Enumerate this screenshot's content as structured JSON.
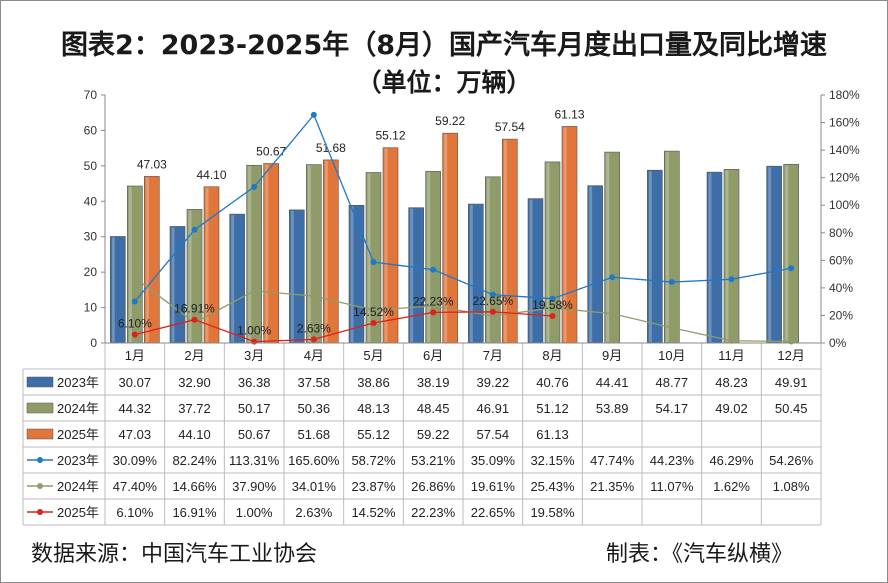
{
  "title": "图表2：2023-2025年（8月）国产汽车月度出口量及同比增速",
  "subtitle": "（单位：万辆）",
  "source": "数据来源：中国汽车工业协会",
  "maker": "制表：《汽车纵横》",
  "chart_data": {
    "type": "bar+line",
    "categories": [
      "1月",
      "2月",
      "3月",
      "4月",
      "5月",
      "6月",
      "7月",
      "8月",
      "9月",
      "10月",
      "11月",
      "12月"
    ],
    "y_left": {
      "min": 0,
      "max": 70,
      "step": 10,
      "ticks": [
        "0",
        "10",
        "20",
        "30",
        "40",
        "50",
        "60",
        "70"
      ]
    },
    "y_right": {
      "min": 0,
      "max": 180,
      "step": 20,
      "ticks": [
        "0%",
        "20%",
        "40%",
        "60%",
        "80%",
        "100%",
        "120%",
        "140%",
        "160%",
        "180%"
      ]
    },
    "grid": false,
    "legend": "table-below",
    "bar_series": [
      {
        "name": "2023年",
        "color": "#3d6ea8",
        "values": [
          30.07,
          32.9,
          36.38,
          37.58,
          38.86,
          38.19,
          39.22,
          40.76,
          44.41,
          48.77,
          48.23,
          49.91
        ],
        "labels": [
          "30.07",
          "32.90",
          "36.38",
          "37.58",
          "38.86",
          "38.19",
          "39.22",
          "40.76",
          "44.41",
          "48.77",
          "48.23",
          "49.91"
        ]
      },
      {
        "name": "2024年",
        "color": "#8f9c6a",
        "values": [
          44.32,
          37.72,
          50.17,
          50.36,
          48.13,
          48.45,
          46.91,
          51.12,
          53.89,
          54.17,
          49.02,
          50.45
        ],
        "labels": [
          "44.32",
          "37.72",
          "50.17",
          "50.36",
          "48.13",
          "48.45",
          "46.91",
          "51.12",
          "53.89",
          "54.17",
          "49.02",
          "50.45"
        ]
      },
      {
        "name": "2025年",
        "color": "#e0763a",
        "values": [
          47.03,
          44.1,
          50.67,
          51.68,
          55.12,
          59.22,
          57.54,
          61.13
        ],
        "labels": [
          "47.03",
          "44.10",
          "50.67",
          "51.68",
          "55.12",
          "59.22",
          "57.54",
          "61.13"
        ]
      }
    ],
    "line_series": [
      {
        "name": "2023年",
        "color": "#1f78c8",
        "values": [
          30.09,
          82.24,
          113.31,
          165.6,
          58.72,
          53.21,
          35.09,
          32.15,
          47.74,
          44.23,
          46.29,
          54.26
        ],
        "labels": [
          "30.09%",
          "82.24%",
          "113.31%",
          "165.60%",
          "58.72%",
          "53.21%",
          "35.09%",
          "32.15%",
          "47.74%",
          "44.23%",
          "46.29%",
          "54.26%"
        ]
      },
      {
        "name": "2024年",
        "color": "#8f9c6a",
        "values": [
          47.4,
          14.66,
          37.9,
          34.01,
          23.87,
          26.86,
          19.61,
          25.43,
          21.35,
          11.07,
          1.62,
          1.08
        ],
        "labels": [
          "47.40%",
          "14.66%",
          "37.90%",
          "34.01%",
          "23.87%",
          "26.86%",
          "19.61%",
          "25.43%",
          "21.35%",
          "11.07%",
          "1.62%",
          "1.08%"
        ]
      },
      {
        "name": "2025年",
        "color": "#e0201a",
        "values": [
          6.1,
          16.91,
          1.0,
          2.63,
          14.52,
          22.23,
          22.65,
          19.58
        ],
        "labels": [
          "6.10%",
          "16.91%",
          "1.00%",
          "2.63%",
          "14.52%",
          "22.23%",
          "22.65%",
          "19.58%"
        ]
      }
    ]
  }
}
